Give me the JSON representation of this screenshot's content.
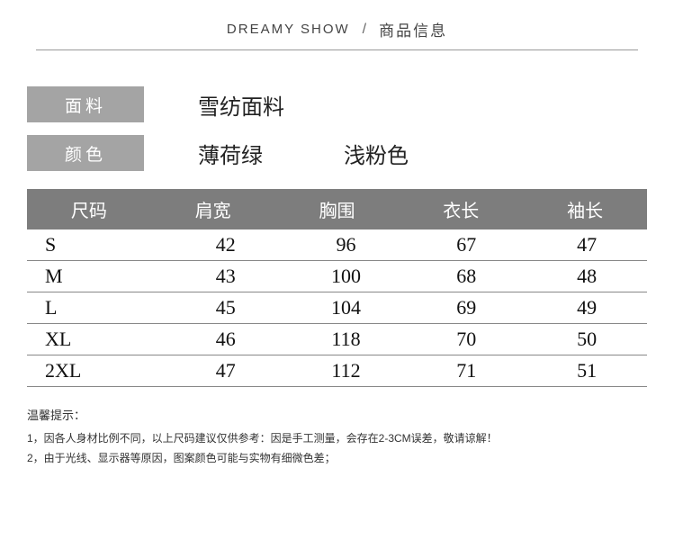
{
  "header": {
    "brand": "DREAMY SHOW",
    "slash": "/",
    "subtitle": "商品信息"
  },
  "info": {
    "fabric_label": "面料",
    "fabric_value": "雪纺面料",
    "color_label": "颜色",
    "color_values": [
      "薄荷绿",
      "浅粉色"
    ]
  },
  "table": {
    "headers": [
      "尺码",
      "肩宽",
      "胸围",
      "衣长",
      "袖长"
    ],
    "rows": [
      [
        "S",
        "42",
        "96",
        "67",
        "47"
      ],
      [
        "M",
        "43",
        "100",
        "68",
        "48"
      ],
      [
        "L",
        "45",
        "104",
        "69",
        "49"
      ],
      [
        "XL",
        "46",
        "118",
        "70",
        "50"
      ],
      [
        "2XL",
        "47",
        "112",
        "71",
        "51"
      ]
    ]
  },
  "notes": {
    "title": "温馨提示：",
    "lines": [
      "1，因各人身材比例不同，以上尺码建议仅供参考：因是手工测量，会存在2-3CM误差，敬请谅解！",
      "2，由于光线、显示器等原因，图案颜色可能与实物有细微色差；"
    ]
  },
  "colors": {
    "label_bg": "#a4a4a4",
    "table_header_bg": "#7d7d7d",
    "border": "#888888",
    "text": "#333333",
    "bg": "#ffffff"
  }
}
